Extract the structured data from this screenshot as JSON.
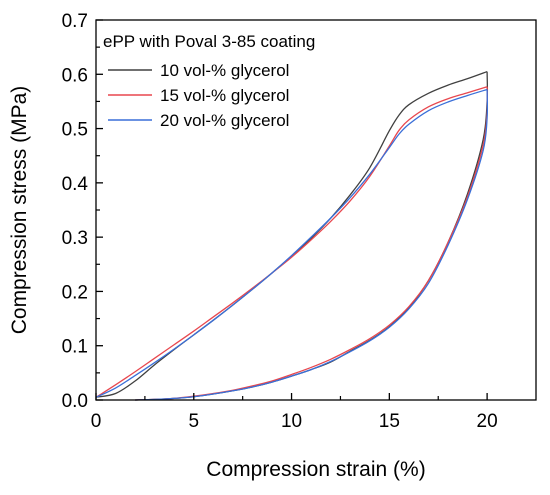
{
  "chart_data": {
    "type": "line",
    "title": "",
    "legend_title": "ePP with Poval 3-85 coating",
    "legend_position": "top-left",
    "grid": false,
    "xlabel": "Compression strain (%)",
    "ylabel": "Compression stress (MPa)",
    "xlim": [
      0,
      22.5
    ],
    "ylim": [
      0,
      0.7
    ],
    "x_ticks": [
      0,
      5,
      10,
      15,
      20
    ],
    "y_ticks": [
      0.0,
      0.1,
      0.2,
      0.3,
      0.4,
      0.5,
      0.6,
      0.7
    ],
    "x_tick_labels": [
      "0",
      "5",
      "10",
      "15",
      "20"
    ],
    "y_tick_labels": [
      "0.0",
      "0.1",
      "0.2",
      "0.3",
      "0.4",
      "0.5",
      "0.6",
      "0.7"
    ],
    "series": [
      {
        "name": "10 vol-% glycerol",
        "color": "#404040",
        "loading": [
          [
            0,
            0.005
          ],
          [
            1,
            0.012
          ],
          [
            2,
            0.035
          ],
          [
            3,
            0.065
          ],
          [
            4,
            0.093
          ],
          [
            5,
            0.12
          ],
          [
            6,
            0.147
          ],
          [
            7,
            0.175
          ],
          [
            8,
            0.204
          ],
          [
            9,
            0.234
          ],
          [
            10,
            0.265
          ],
          [
            11,
            0.298
          ],
          [
            12,
            0.335
          ],
          [
            13,
            0.378
          ],
          [
            14,
            0.428
          ],
          [
            15,
            0.496
          ],
          [
            15.5,
            0.525
          ],
          [
            16,
            0.544
          ],
          [
            17,
            0.565
          ],
          [
            18,
            0.58
          ],
          [
            19,
            0.592
          ],
          [
            20,
            0.605
          ]
        ],
        "unloading": [
          [
            20,
            0.605
          ],
          [
            20,
            0.55
          ],
          [
            19.8,
            0.48
          ],
          [
            19,
            0.38
          ],
          [
            18,
            0.29
          ],
          [
            17,
            0.22
          ],
          [
            16,
            0.17
          ],
          [
            15,
            0.135
          ],
          [
            14,
            0.11
          ],
          [
            13,
            0.09
          ],
          [
            12,
            0.07
          ],
          [
            11,
            0.056
          ],
          [
            10,
            0.044
          ],
          [
            9,
            0.033
          ],
          [
            8,
            0.024
          ],
          [
            7,
            0.017
          ],
          [
            6,
            0.011
          ],
          [
            5,
            0.006
          ],
          [
            4,
            0.003
          ],
          [
            3,
            0.001
          ],
          [
            2,
            0.0
          ]
        ]
      },
      {
        "name": "15 vol-% glycerol",
        "color": "#e8474e",
        "loading": [
          [
            0,
            0.005
          ],
          [
            1,
            0.028
          ],
          [
            2,
            0.052
          ],
          [
            3,
            0.077
          ],
          [
            4,
            0.102
          ],
          [
            5,
            0.127
          ],
          [
            6,
            0.153
          ],
          [
            7,
            0.179
          ],
          [
            8,
            0.206
          ],
          [
            9,
            0.234
          ],
          [
            10,
            0.263
          ],
          [
            11,
            0.295
          ],
          [
            12,
            0.329
          ],
          [
            13,
            0.367
          ],
          [
            14,
            0.412
          ],
          [
            15,
            0.468
          ],
          [
            15.5,
            0.497
          ],
          [
            16,
            0.516
          ],
          [
            17,
            0.54
          ],
          [
            18,
            0.555
          ],
          [
            19,
            0.566
          ],
          [
            20,
            0.577
          ]
        ],
        "unloading": [
          [
            20,
            0.577
          ],
          [
            20,
            0.53
          ],
          [
            19.8,
            0.47
          ],
          [
            19,
            0.375
          ],
          [
            18,
            0.29
          ],
          [
            17,
            0.22
          ],
          [
            16,
            0.172
          ],
          [
            15,
            0.138
          ],
          [
            14,
            0.113
          ],
          [
            13,
            0.093
          ],
          [
            12,
            0.075
          ],
          [
            11,
            0.06
          ],
          [
            10,
            0.047
          ],
          [
            9,
            0.035
          ],
          [
            8,
            0.026
          ],
          [
            7,
            0.018
          ],
          [
            6,
            0.012
          ],
          [
            5,
            0.007
          ],
          [
            4,
            0.003
          ],
          [
            3,
            0.001
          ],
          [
            2,
            0.0
          ]
        ]
      },
      {
        "name": "20 vol-% glycerol",
        "color": "#3a6fd8",
        "loading": [
          [
            0,
            0.005
          ],
          [
            1,
            0.022
          ],
          [
            2,
            0.045
          ],
          [
            3,
            0.069
          ],
          [
            4,
            0.094
          ],
          [
            5,
            0.12
          ],
          [
            6,
            0.147
          ],
          [
            7,
            0.175
          ],
          [
            8,
            0.204
          ],
          [
            9,
            0.234
          ],
          [
            10,
            0.266
          ],
          [
            11,
            0.3
          ],
          [
            12,
            0.335
          ],
          [
            13,
            0.373
          ],
          [
            14,
            0.416
          ],
          [
            15,
            0.465
          ],
          [
            15.5,
            0.49
          ],
          [
            16,
            0.508
          ],
          [
            17,
            0.533
          ],
          [
            18,
            0.549
          ],
          [
            19,
            0.561
          ],
          [
            20,
            0.572
          ]
        ],
        "unloading": [
          [
            20,
            0.572
          ],
          [
            20,
            0.52
          ],
          [
            19.8,
            0.46
          ],
          [
            19,
            0.37
          ],
          [
            18,
            0.285
          ],
          [
            17,
            0.215
          ],
          [
            16,
            0.168
          ],
          [
            15,
            0.134
          ],
          [
            14,
            0.109
          ],
          [
            13,
            0.089
          ],
          [
            12,
            0.071
          ],
          [
            11,
            0.056
          ],
          [
            10,
            0.044
          ],
          [
            9,
            0.033
          ],
          [
            8,
            0.024
          ],
          [
            7,
            0.017
          ],
          [
            6,
            0.011
          ],
          [
            5,
            0.006
          ],
          [
            4,
            0.003
          ],
          [
            3,
            0.001
          ],
          [
            2,
            0.0
          ]
        ]
      }
    ]
  }
}
